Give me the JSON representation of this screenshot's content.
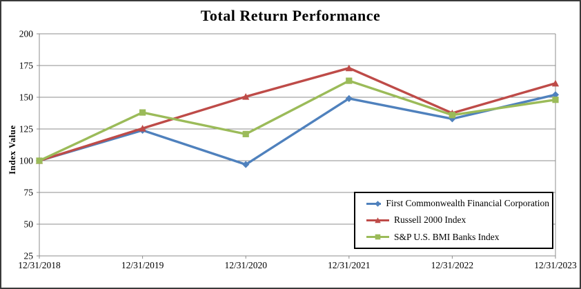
{
  "figure": {
    "title": "Total Return Performance",
    "ylabel": "Index Value"
  },
  "chart_data": {
    "type": "line",
    "title": "Total Return Performance",
    "xlabel": "",
    "ylabel": "Index Value",
    "categories": [
      "12/31/2018",
      "12/31/2019",
      "12/31/2020",
      "12/31/2021",
      "12/31/2022",
      "12/31/2023"
    ],
    "series": [
      {
        "name": "First Commonwealth Financial Corporation",
        "color": "#4F81BD",
        "marker": "diamond",
        "values": [
          100,
          124,
          97,
          149,
          133,
          152
        ]
      },
      {
        "name": "Russell 2000 Index",
        "color": "#BE4B48",
        "marker": "triangle",
        "values": [
          100,
          125.5,
          150.5,
          173,
          137.5,
          161
        ]
      },
      {
        "name": "S&P U.S. BMI Banks Index",
        "color": "#9BBB59",
        "marker": "square",
        "values": [
          100,
          138,
          121,
          163,
          136,
          148
        ]
      }
    ],
    "ylim": [
      25,
      200
    ],
    "ytick_step": 25,
    "grid": true,
    "grid_color": "#8C8C8C",
    "axis_color": "#8C8C8C",
    "text_color": "#000000",
    "legend_position": "lower-right-inside"
  }
}
